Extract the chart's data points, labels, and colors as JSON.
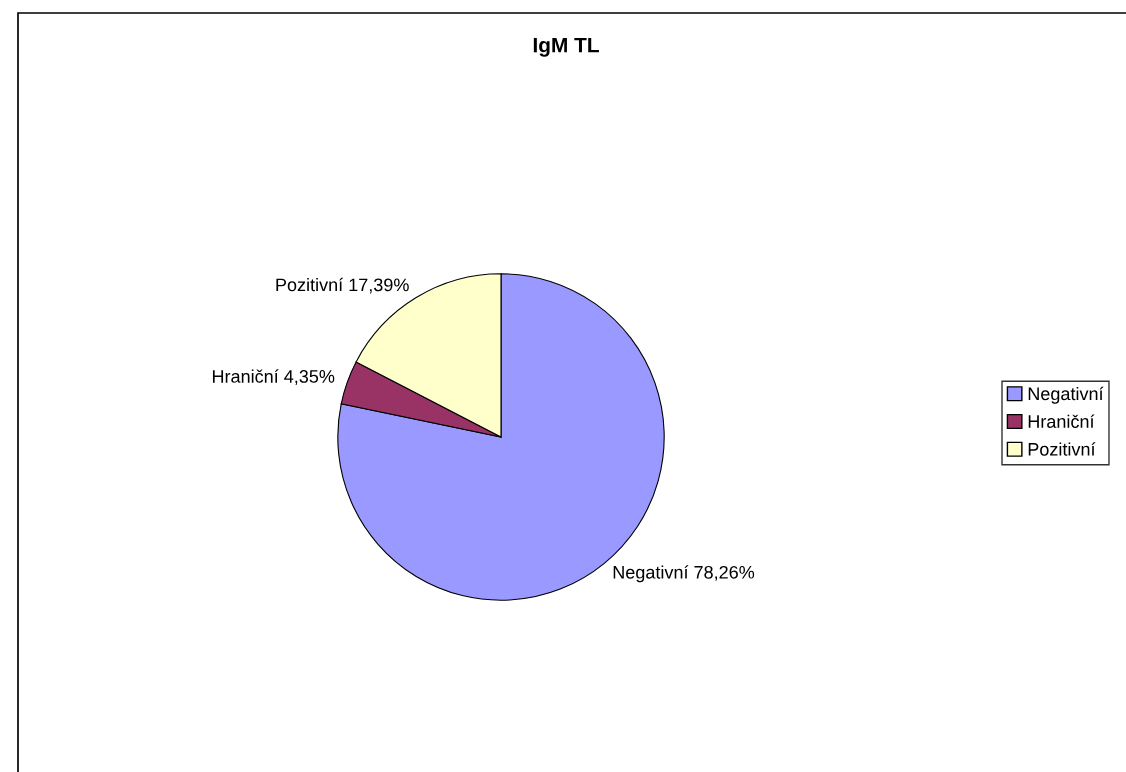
{
  "chart_data": {
    "type": "pie",
    "title": "IgM TL",
    "categories": [
      "Negativní",
      "Hraniční",
      "Pozitivní"
    ],
    "values": [
      78.26,
      4.35,
      17.39
    ],
    "value_labels": [
      "78,26%",
      "4,35%",
      "17,39%"
    ],
    "colors": [
      "#9999ff",
      "#993366",
      "#ffffcc"
    ],
    "legend": "right"
  }
}
